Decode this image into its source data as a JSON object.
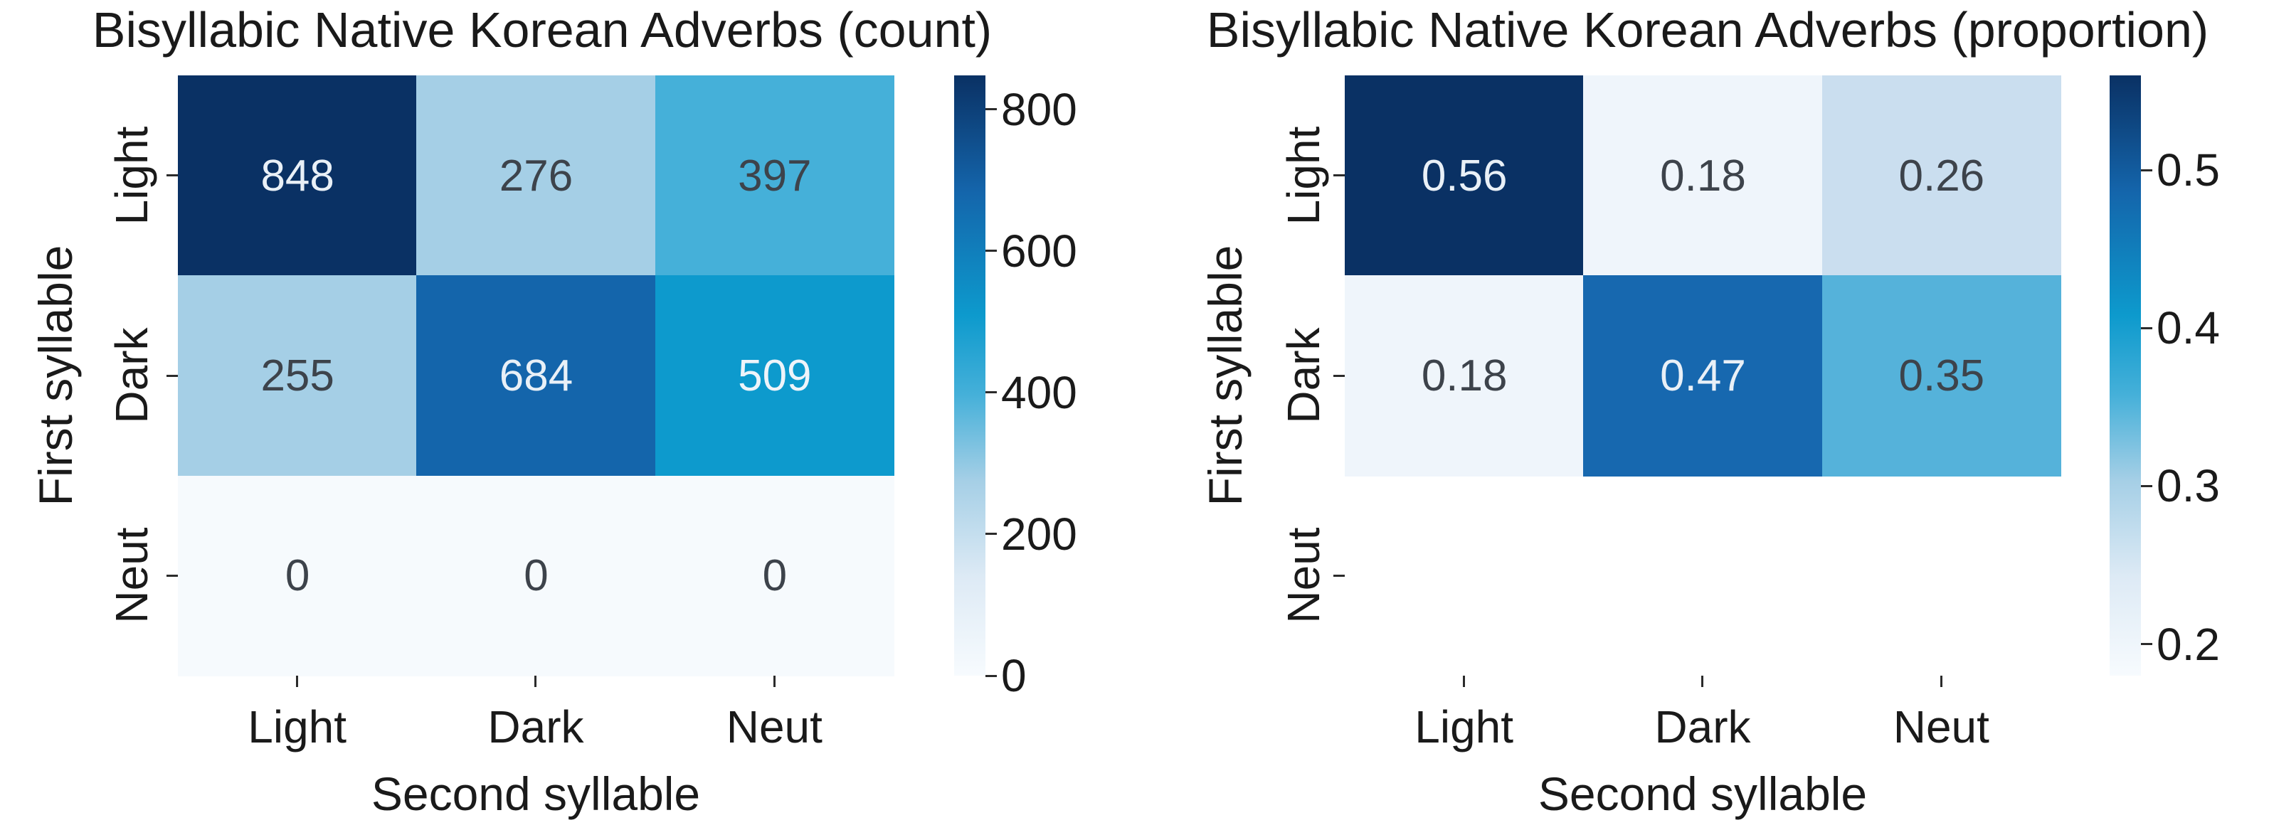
{
  "page": {
    "background": "#ffffff",
    "text_color": "#1a1a1a"
  },
  "chart_data": [
    {
      "type": "heatmap",
      "title": "Bisyllabic Native Korean Adverbs (count)",
      "xlabel": "Second syllable",
      "ylabel": "First syllable",
      "columns": [
        "Light",
        "Dark",
        "Neut"
      ],
      "rows": [
        "Light",
        "Dark",
        "Neut"
      ],
      "values": [
        [
          848,
          276,
          397
        ],
        [
          255,
          684,
          509
        ],
        [
          0,
          0,
          0
        ]
      ],
      "cell_labels": [
        [
          "848",
          "276",
          "397"
        ],
        [
          "255",
          "684",
          "509"
        ],
        [
          "0",
          "0",
          "0"
        ]
      ],
      "cell_colors": [
        [
          "#0a3164",
          "#a5cfe6",
          "#45b0d9"
        ],
        [
          "#a5cfe6",
          "#1465ab",
          "#0d9acd"
        ],
        [
          "#f6fafd",
          "#f6fafd",
          "#f6fafd"
        ]
      ],
      "cell_text_colors": [
        [
          "#e9f0f7",
          "#3d434b",
          "#3d434b"
        ],
        [
          "#3d434b",
          "#e9f0f7",
          "#eef4fa"
        ],
        [
          "#3d434b",
          "#3d434b",
          "#3d434b"
        ]
      ],
      "colormap": "Blues",
      "grid": false,
      "colorbar": {
        "min": 0,
        "max": 848,
        "tick_values": [
          800,
          600,
          400,
          200,
          0
        ],
        "tick_labels": [
          "800",
          "600",
          "400",
          "200",
          "0"
        ]
      }
    },
    {
      "type": "heatmap",
      "title": "Bisyllabic Native Korean Adverbs (proportion)",
      "xlabel": "Second syllable",
      "ylabel": "First syllable",
      "columns": [
        "Light",
        "Dark",
        "Neut"
      ],
      "rows": [
        "Light",
        "Dark",
        "Neut"
      ],
      "values": [
        [
          0.56,
          0.18,
          0.26
        ],
        [
          0.18,
          0.47,
          0.35
        ],
        [
          null,
          null,
          null
        ]
      ],
      "cell_labels": [
        [
          "0.56",
          "0.18",
          "0.26"
        ],
        [
          "0.18",
          "0.47",
          "0.35"
        ],
        [
          "",
          "",
          ""
        ]
      ],
      "cell_colors": [
        [
          "#0a3164",
          "#eff5fb",
          "#cadeef"
        ],
        [
          "#eff5fb",
          "#1768af",
          "#55b2da"
        ],
        [
          null,
          null,
          null
        ]
      ],
      "cell_text_colors": [
        [
          "#e9f0f7",
          "#3d434b",
          "#3d434b"
        ],
        [
          "#3d434b",
          "#e9f0f7",
          "#3d434b"
        ],
        [
          null,
          null,
          null
        ]
      ],
      "colormap": "Blues",
      "grid": false,
      "colorbar": {
        "min": 0.18,
        "max": 0.56,
        "tick_values": [
          0.5,
          0.4,
          0.3,
          0.2
        ],
        "tick_labels": [
          "0.5",
          "0.4",
          "0.3",
          "0.2"
        ]
      }
    }
  ]
}
